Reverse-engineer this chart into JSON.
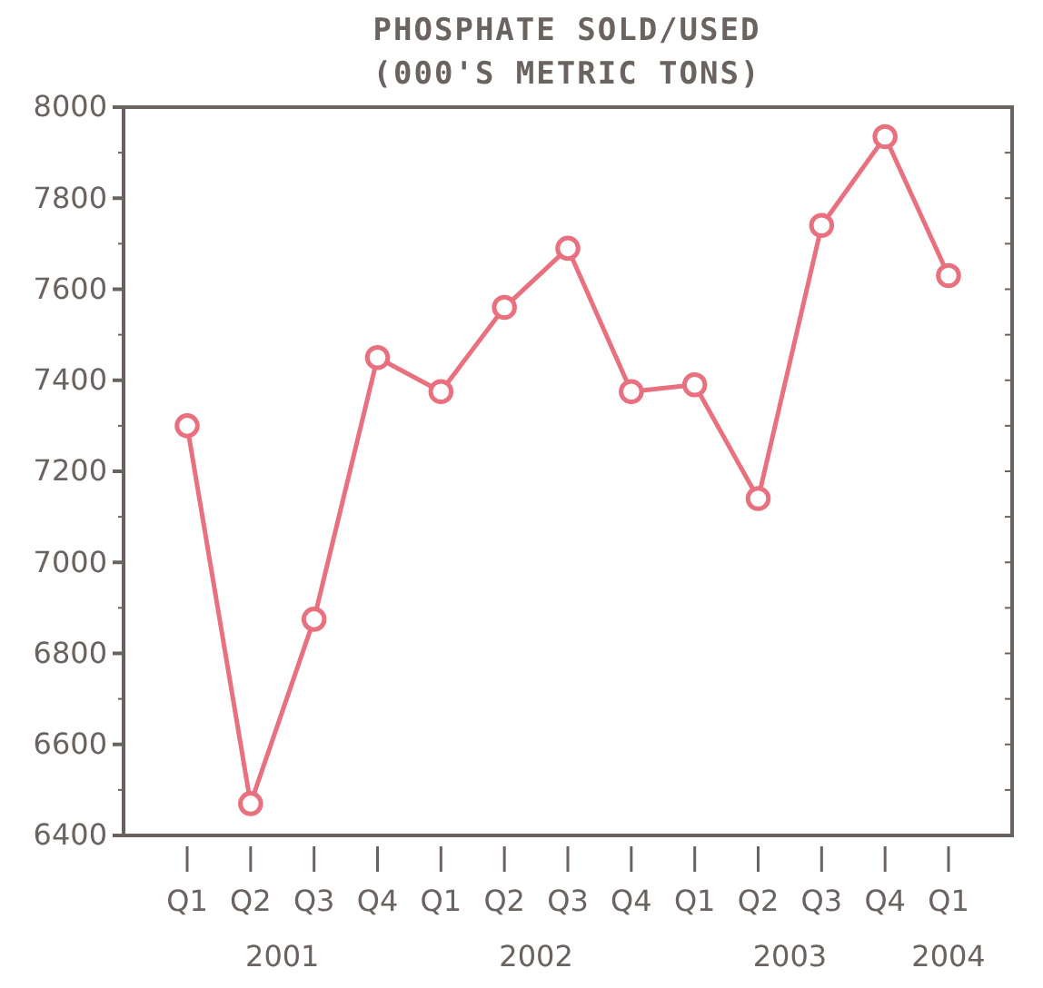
{
  "chart_data": {
    "type": "line",
    "title": "PHOSPHATE SOLD/USED",
    "subtitle": "(000'S METRIC TONS)",
    "categories": [
      "Q1",
      "Q2",
      "Q3",
      "Q4",
      "Q1",
      "Q2",
      "Q3",
      "Q4",
      "Q1",
      "Q2",
      "Q3",
      "Q4",
      "Q1"
    ],
    "series": [
      {
        "color": "#e8707f",
        "values": [
          7300,
          6470,
          6875,
          7450,
          7375,
          7560,
          7690,
          7375,
          7390,
          7140,
          7740,
          7935,
          7630
        ]
      }
    ],
    "ylim": [
      6400,
      8000
    ],
    "yticks": [
      6400,
      6600,
      6800,
      7000,
      7200,
      7400,
      7600,
      7800,
      8000
    ],
    "annotations": [
      "2001",
      "2002",
      "2003",
      "2004"
    ],
    "marker": "circle",
    "line_style": "solid"
  }
}
